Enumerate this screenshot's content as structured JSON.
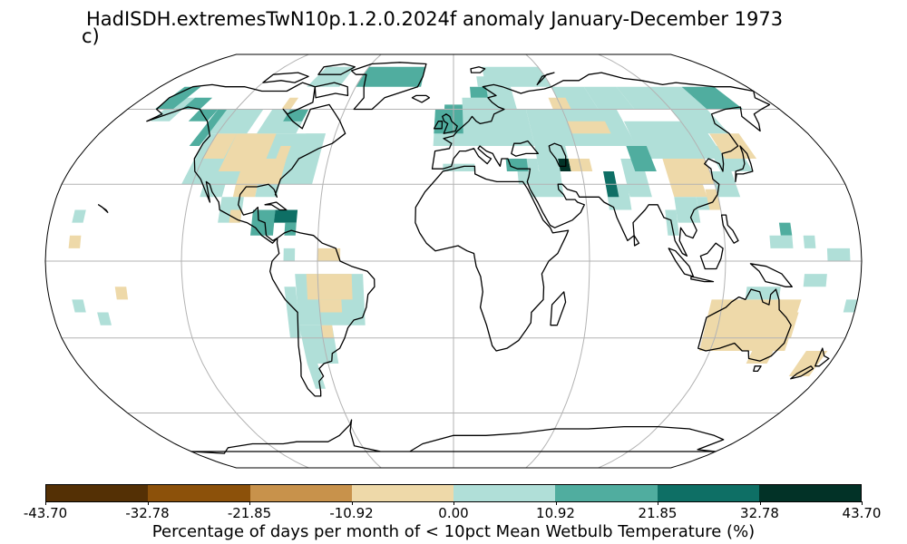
{
  "title": "HadISDH.extremesTwN10p.1.2.0.2024f anomaly January-December 1973",
  "panel_label": "c)",
  "colorbar": {
    "label": "Percentage of days per month of < 10pct Mean Wetbulb Temperature (%)",
    "ticks": [
      "-43.70",
      "-32.78",
      "-21.85",
      "-10.92",
      "0.00",
      "10.92",
      "21.85",
      "32.78",
      "43.70"
    ],
    "colors": [
      "#543005",
      "#8c510a",
      "#c8924b",
      "#eed9a9",
      "#b0dfd8",
      "#50ad9f",
      "#0e6f65",
      "#023227"
    ]
  },
  "map": {
    "projection": "Robinson",
    "gridlines": true,
    "coastline_color": "#000000",
    "shown_regions": [
      "North America",
      "South America",
      "Europe",
      "Asia",
      "Australia",
      "Pacific islands"
    ]
  }
}
